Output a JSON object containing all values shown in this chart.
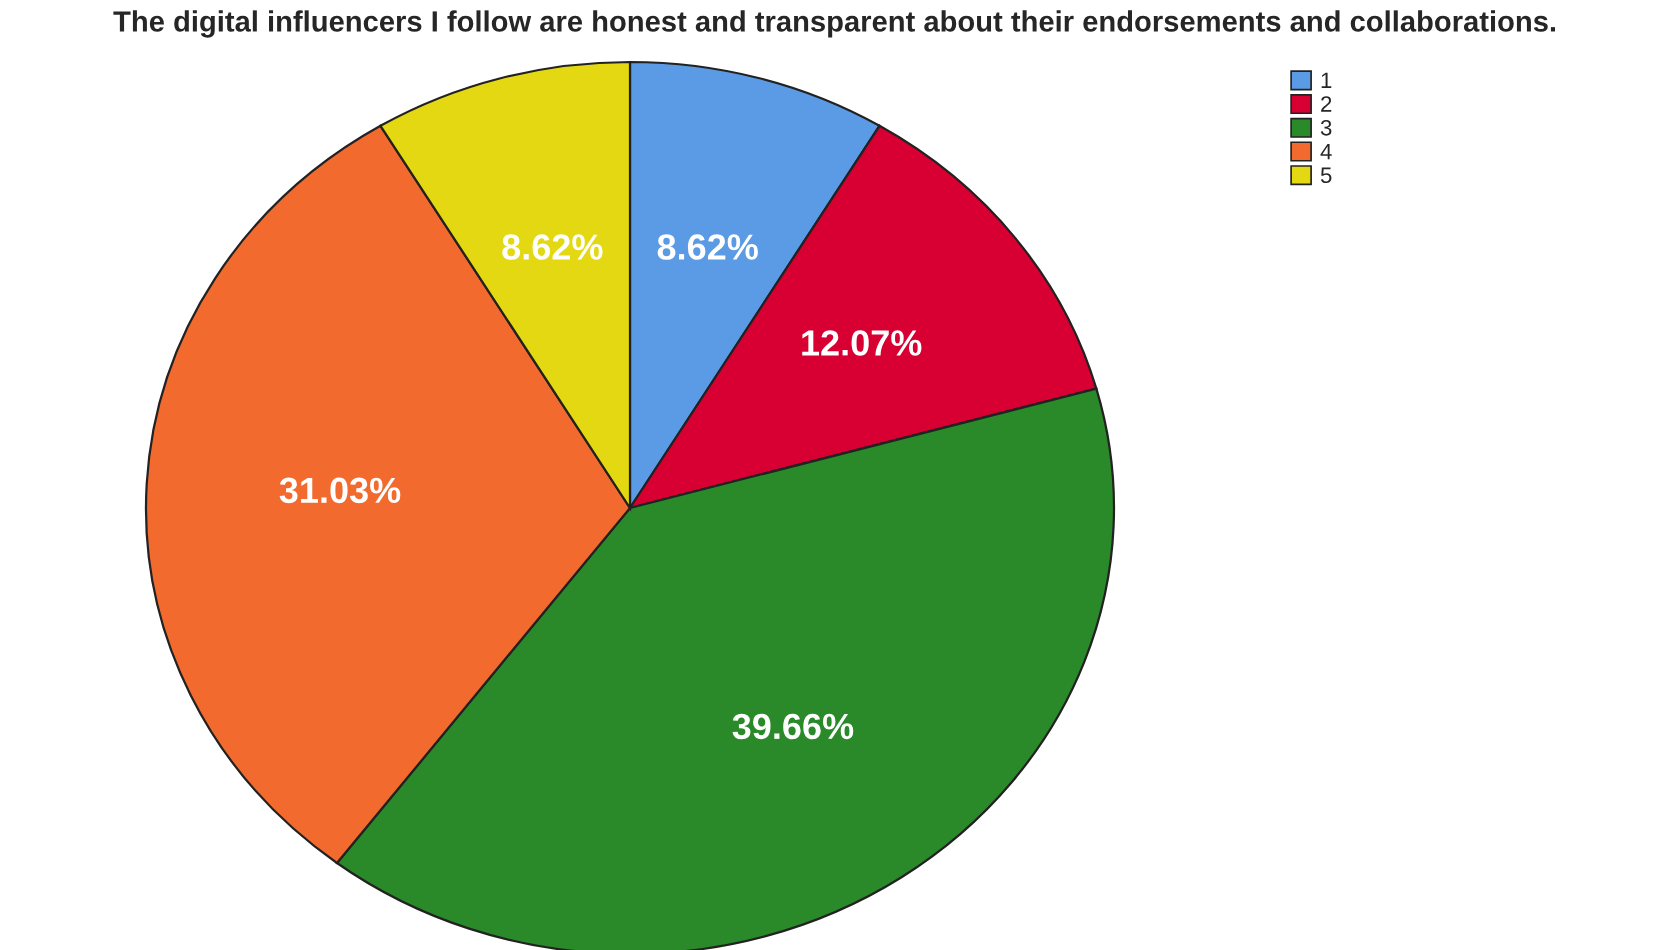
{
  "chart_data": {
    "type": "pie",
    "title": "The digital influencers I follow are honest and transparent about their endorsements and collaborations.",
    "categories": [
      "1",
      "2",
      "3",
      "4",
      "5"
    ],
    "values": [
      8.62,
      12.07,
      39.66,
      31.03,
      8.62
    ],
    "value_labels": [
      "8.62%",
      "12.07%",
      "39.66%",
      "31.03%",
      "8.62%"
    ],
    "colors": [
      "#5b9be6",
      "#d80032",
      "#2a8a2a",
      "#f26a2e",
      "#e3d812"
    ],
    "legend": "top right"
  }
}
